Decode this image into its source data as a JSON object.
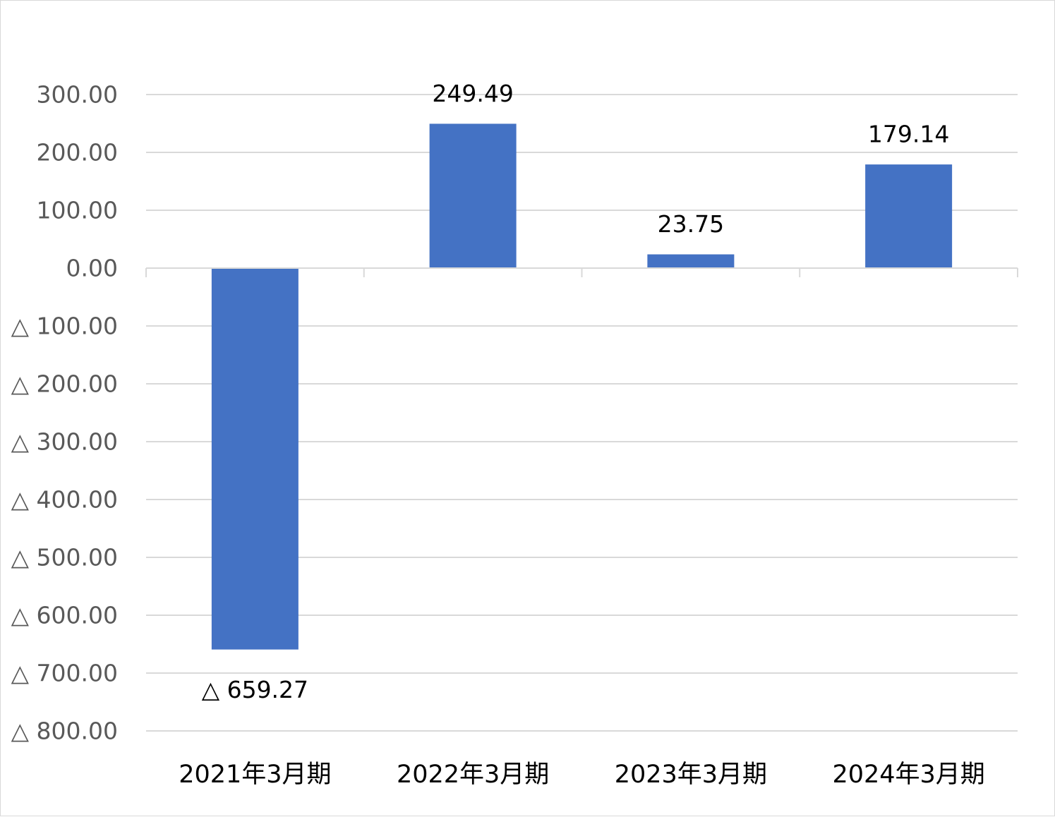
{
  "chart_data": {
    "type": "bar",
    "categories": [
      "2021年3月期",
      "2022年3月期",
      "2023年3月期",
      "2024年3月期"
    ],
    "values": [
      -659.27,
      249.49,
      23.75,
      179.14
    ],
    "data_labels": [
      "△ 659.27",
      "249.49",
      "23.75",
      "179.14"
    ],
    "y_ticks": [
      300,
      200,
      100,
      0,
      -100,
      -200,
      -300,
      -400,
      -500,
      -600,
      -700,
      -800
    ],
    "y_tick_labels": [
      "300.00",
      "200.00",
      "100.00",
      "0.00",
      "△ 100.00",
      "△ 200.00",
      "△ 300.00",
      "△ 400.00",
      "△ 500.00",
      "△ 600.00",
      "△ 700.00",
      "△ 800.00"
    ],
    "ylim": [
      -800,
      300
    ],
    "grid": true,
    "legend": "none",
    "bar_color": "#4472C4",
    "grid_color": "#D9D9D9"
  }
}
